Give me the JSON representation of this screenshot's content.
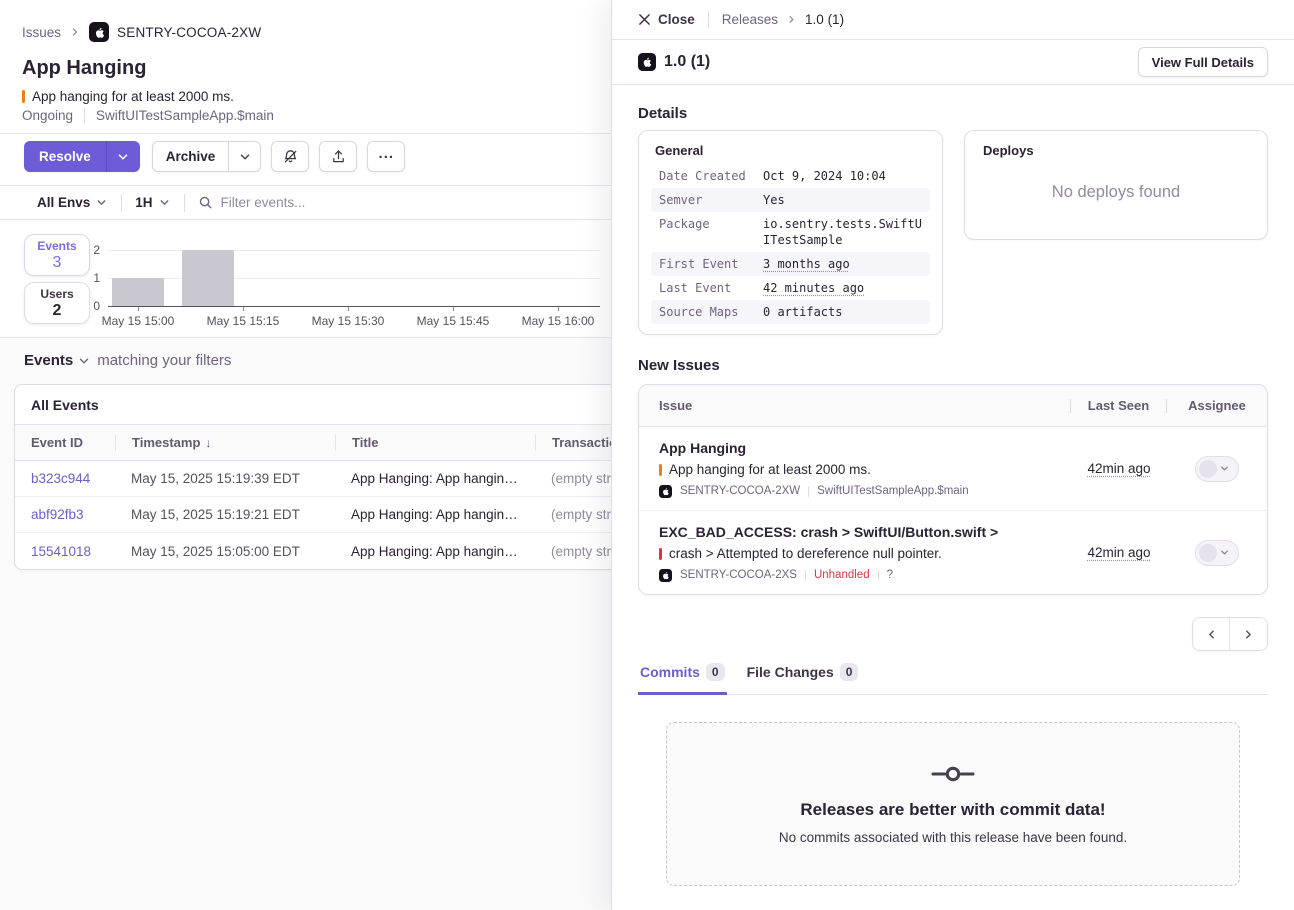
{
  "left_panel": {
    "breadcrumb": {
      "issues": "Issues",
      "project": "SENTRY-COCOA-2XW"
    },
    "header": {
      "title": "App Hanging",
      "subtitle": "App hanging for at least 2000 ms.",
      "status": "Ongoing",
      "context": "SwiftUITestSampleApp.$main"
    },
    "toolbar": {
      "resolve": "Resolve",
      "archive": "Archive"
    },
    "filters": {
      "environment": "All Envs",
      "time_range": "1H",
      "search_placeholder": "Filter events..."
    },
    "stats": {
      "events_label": "Events",
      "events_value": "3",
      "users_label": "Users",
      "users_value": "2"
    },
    "events_section": {
      "title": "Events",
      "subtitle": "matching your filters",
      "card_title": "All Events",
      "columns": {
        "id": "Event ID",
        "timestamp": "Timestamp",
        "title": "Title",
        "transaction": "Transaction"
      },
      "rows": [
        {
          "id": "b323c944",
          "timestamp": "May 15, 2025 15:19:39 EDT",
          "title": "App Hanging: App hangin…",
          "transaction": "(empty str…"
        },
        {
          "id": "abf92fb3",
          "timestamp": "May 15, 2025 15:19:21 EDT",
          "title": "App Hanging: App hangin…",
          "transaction": "(empty str…"
        },
        {
          "id": "15541018",
          "timestamp": "May 15, 2025 15:05:00 EDT",
          "title": "App Hanging: App hangin…",
          "transaction": "(empty str…"
        }
      ]
    }
  },
  "chart_data": {
    "type": "bar",
    "series_label": "Events",
    "x_ticks": [
      "May 15 15:00",
      "May 15 15:15",
      "May 15 15:30",
      "May 15 15:45",
      "May 15 16:00"
    ],
    "y_ticks": [
      0,
      1,
      2
    ],
    "ylim": [
      0,
      2
    ],
    "bars": [
      {
        "time": "15:00",
        "value": 1
      },
      {
        "time": "15:10",
        "value": 2
      }
    ],
    "bar_color": "#C9C7CF",
    "grid": true,
    "totals": {
      "events": 3,
      "users": 2
    }
  },
  "drawer": {
    "header": {
      "close": "Close",
      "breadcrumb_root": "Releases",
      "breadcrumb_current": "1.0 (1)"
    },
    "titlebar": {
      "title": "1.0 (1)",
      "action": "View Full Details"
    },
    "details": {
      "heading": "Details",
      "general": {
        "title": "General",
        "rows": [
          {
            "key": "Date Created",
            "value": "Oct 9, 2024 10:04"
          },
          {
            "key": "Semver",
            "value": "Yes"
          },
          {
            "key": "Package",
            "value": "io.sentry.tests.SwiftUITestSample"
          },
          {
            "key": "First Event",
            "value": "3 months ago"
          },
          {
            "key": "Last Event",
            "value": "42 minutes ago"
          },
          {
            "key": "Source Maps",
            "value": "0 artifacts"
          }
        ]
      },
      "deploys": {
        "title": "Deploys",
        "empty_message": "No deploys found"
      }
    },
    "new_issues": {
      "heading": "New Issues",
      "columns": {
        "issue": "Issue",
        "last_seen": "Last Seen",
        "assignee": "Assignee"
      },
      "rows": [
        {
          "title": "App Hanging",
          "message": "App hanging for at least 2000 ms.",
          "project": "SENTRY-COCOA-2XW",
          "context": "SwiftUITestSampleApp.$main",
          "last_seen": "42min ago"
        },
        {
          "title": "EXC_BAD_ACCESS: crash > SwiftUI/Button.swift >",
          "message": "crash > Attempted to dereference null pointer.",
          "project": "SENTRY-COCOA-2XS",
          "tag": "Unhandled",
          "help": "?",
          "last_seen": "42min ago"
        }
      ]
    },
    "tabs": [
      {
        "label": "Commits",
        "count": "0"
      },
      {
        "label": "File Changes",
        "count": "0"
      }
    ],
    "empty_state": {
      "title": "Releases are better with commit data!",
      "message": "No commits associated with this release have been found."
    }
  },
  "colors": {
    "accent": "#6C5FC7",
    "button_purple": "#6C5CD8",
    "level_orange": "#EE8019",
    "level_red": "#DF3447",
    "border": "#E0DCE5",
    "text_primary": "#2B2233",
    "text_secondary": "#71637E",
    "bar_gray": "#C9C7CF"
  }
}
